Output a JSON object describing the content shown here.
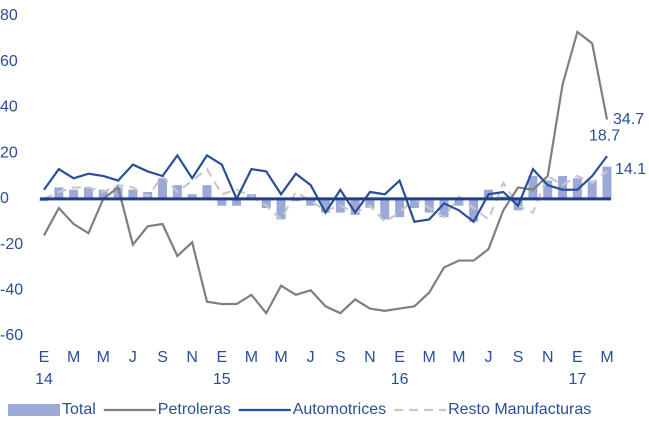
{
  "chart_data": {
    "type": "bar-line",
    "categories": [
      "E",
      null,
      "M",
      null,
      "M",
      null,
      "J",
      null,
      "S",
      null,
      "N",
      null,
      "E",
      null,
      "M",
      null,
      "M",
      null,
      "J",
      null,
      "S",
      null,
      "N",
      null,
      "E",
      null,
      "M",
      null,
      "M",
      null,
      "J",
      null,
      "S",
      null,
      "N",
      null,
      "E",
      null,
      "M"
    ],
    "year_labels": [
      "14",
      null,
      null,
      null,
      null,
      null,
      null,
      null,
      null,
      null,
      null,
      null,
      "15",
      null,
      null,
      null,
      null,
      null,
      null,
      null,
      null,
      null,
      null,
      null,
      "16",
      null,
      null,
      null,
      null,
      null,
      null,
      null,
      null,
      null,
      null,
      null,
      "17",
      null,
      null
    ],
    "series": [
      {
        "name": "Total",
        "kind": "bar",
        "color": "#9aa9d8",
        "values": [
          -1,
          5,
          4,
          5,
          4,
          5,
          4,
          3,
          9,
          6,
          2,
          6,
          -3,
          -3,
          2,
          -4,
          -9,
          -1,
          -3,
          -6,
          -6,
          -7,
          -4,
          -9,
          -8,
          -4,
          -6,
          -8,
          -3,
          -10,
          4,
          1,
          -5,
          10,
          8,
          10,
          9,
          8,
          14.1
        ]
      },
      {
        "name": "Petroleras",
        "kind": "line",
        "color": "#7f7f7f",
        "values": [
          -16,
          -4,
          -11,
          -15,
          0,
          5,
          -20,
          -12,
          -11,
          -25,
          -19,
          -45,
          -46,
          -46,
          -42,
          -50,
          -38,
          -42,
          -40,
          -47,
          -50,
          -44,
          -48,
          -49,
          -48,
          -47,
          -41,
          -30,
          -27,
          -27,
          -22,
          -5,
          5,
          4,
          10,
          50,
          73,
          68,
          34.7
        ]
      },
      {
        "name": "Automotrices",
        "kind": "line",
        "color": "#2a4f98",
        "values": [
          4,
          13,
          9,
          11,
          10,
          8,
          15,
          12,
          10,
          19,
          9,
          19,
          15,
          0,
          13,
          12,
          2,
          11,
          6,
          -6,
          4,
          -6,
          3,
          2,
          8,
          -10,
          -9,
          -2,
          -5,
          -10,
          2,
          3,
          -3,
          13,
          6,
          4,
          4,
          10,
          18.7
        ]
      },
      {
        "name": "Resto Manufacturas",
        "kind": "dashed-line",
        "color": "#c8c8c8",
        "values": [
          0,
          3,
          5,
          5,
          3,
          6,
          5,
          1,
          10,
          3,
          8,
          13,
          2,
          4,
          1,
          -3,
          -9,
          3,
          -1,
          -5,
          -3,
          -6,
          -3,
          -10,
          -6,
          0,
          -4,
          -8,
          1,
          -4,
          -9,
          7,
          -3,
          -6,
          10,
          6,
          10,
          7,
          12
        ]
      }
    ],
    "ylim": [
      -60,
      80
    ],
    "yticks": [
      -60,
      -40,
      -20,
      0,
      20,
      40,
      60,
      80
    ],
    "grid": false,
    "end_labels": [
      "chart_data.series.1.values.38",
      "chart_data.series.2.values.38",
      "chart_data.series.0.values.38"
    ]
  }
}
